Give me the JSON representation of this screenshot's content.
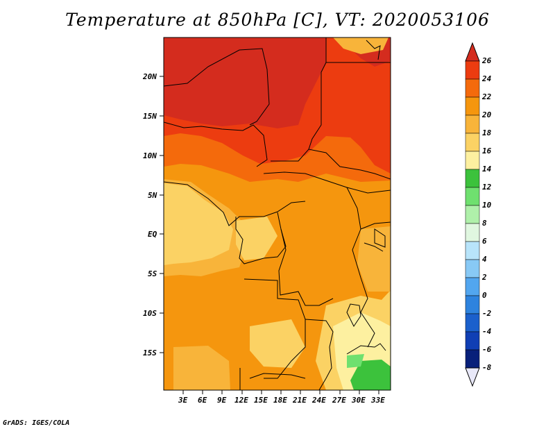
{
  "title": "Temperature at 850hPa [C], VT: 2020053106",
  "footer": "GrADS: IGES/COLA",
  "lat_labels": [
    "20N",
    "15N",
    "10N",
    "5N",
    "EQ",
    "5S",
    "10S",
    "15S"
  ],
  "lon_labels": [
    "3E",
    "6E",
    "9E",
    "12E",
    "15E",
    "18E",
    "21E",
    "24E",
    "27E",
    "30E",
    "33E"
  ],
  "colorbar": {
    "labels": [
      "26",
      "24",
      "22",
      "20",
      "18",
      "16",
      "14",
      "12",
      "10",
      "8",
      "6",
      "4",
      "2",
      "0",
      "-2",
      "-4",
      "-6",
      "-8"
    ],
    "colors": [
      "#d42c1e",
      "#ec3c10",
      "#f46a0c",
      "#f5960e",
      "#f8b43a",
      "#fbd264",
      "#fdf0a0",
      "#3cc23c",
      "#6fe06f",
      "#aff0aa",
      "#e0f7e0",
      "#b8e4fa",
      "#88c9f5",
      "#52a6ef",
      "#2e83de",
      "#1b60cc",
      "#103fb4",
      "#08207a",
      "#000860"
    ]
  },
  "map": {
    "colors": {
      "very_hot": "#d42c1e",
      "hot": "#ec3c10",
      "warm": "#f46a0c",
      "mild": "#f5960e",
      "cool": "#f8b43a",
      "cooler": "#fbd264",
      "pale": "#fdf0a0",
      "green": "#3cc23c",
      "green_light": "#6fe06f"
    }
  }
}
